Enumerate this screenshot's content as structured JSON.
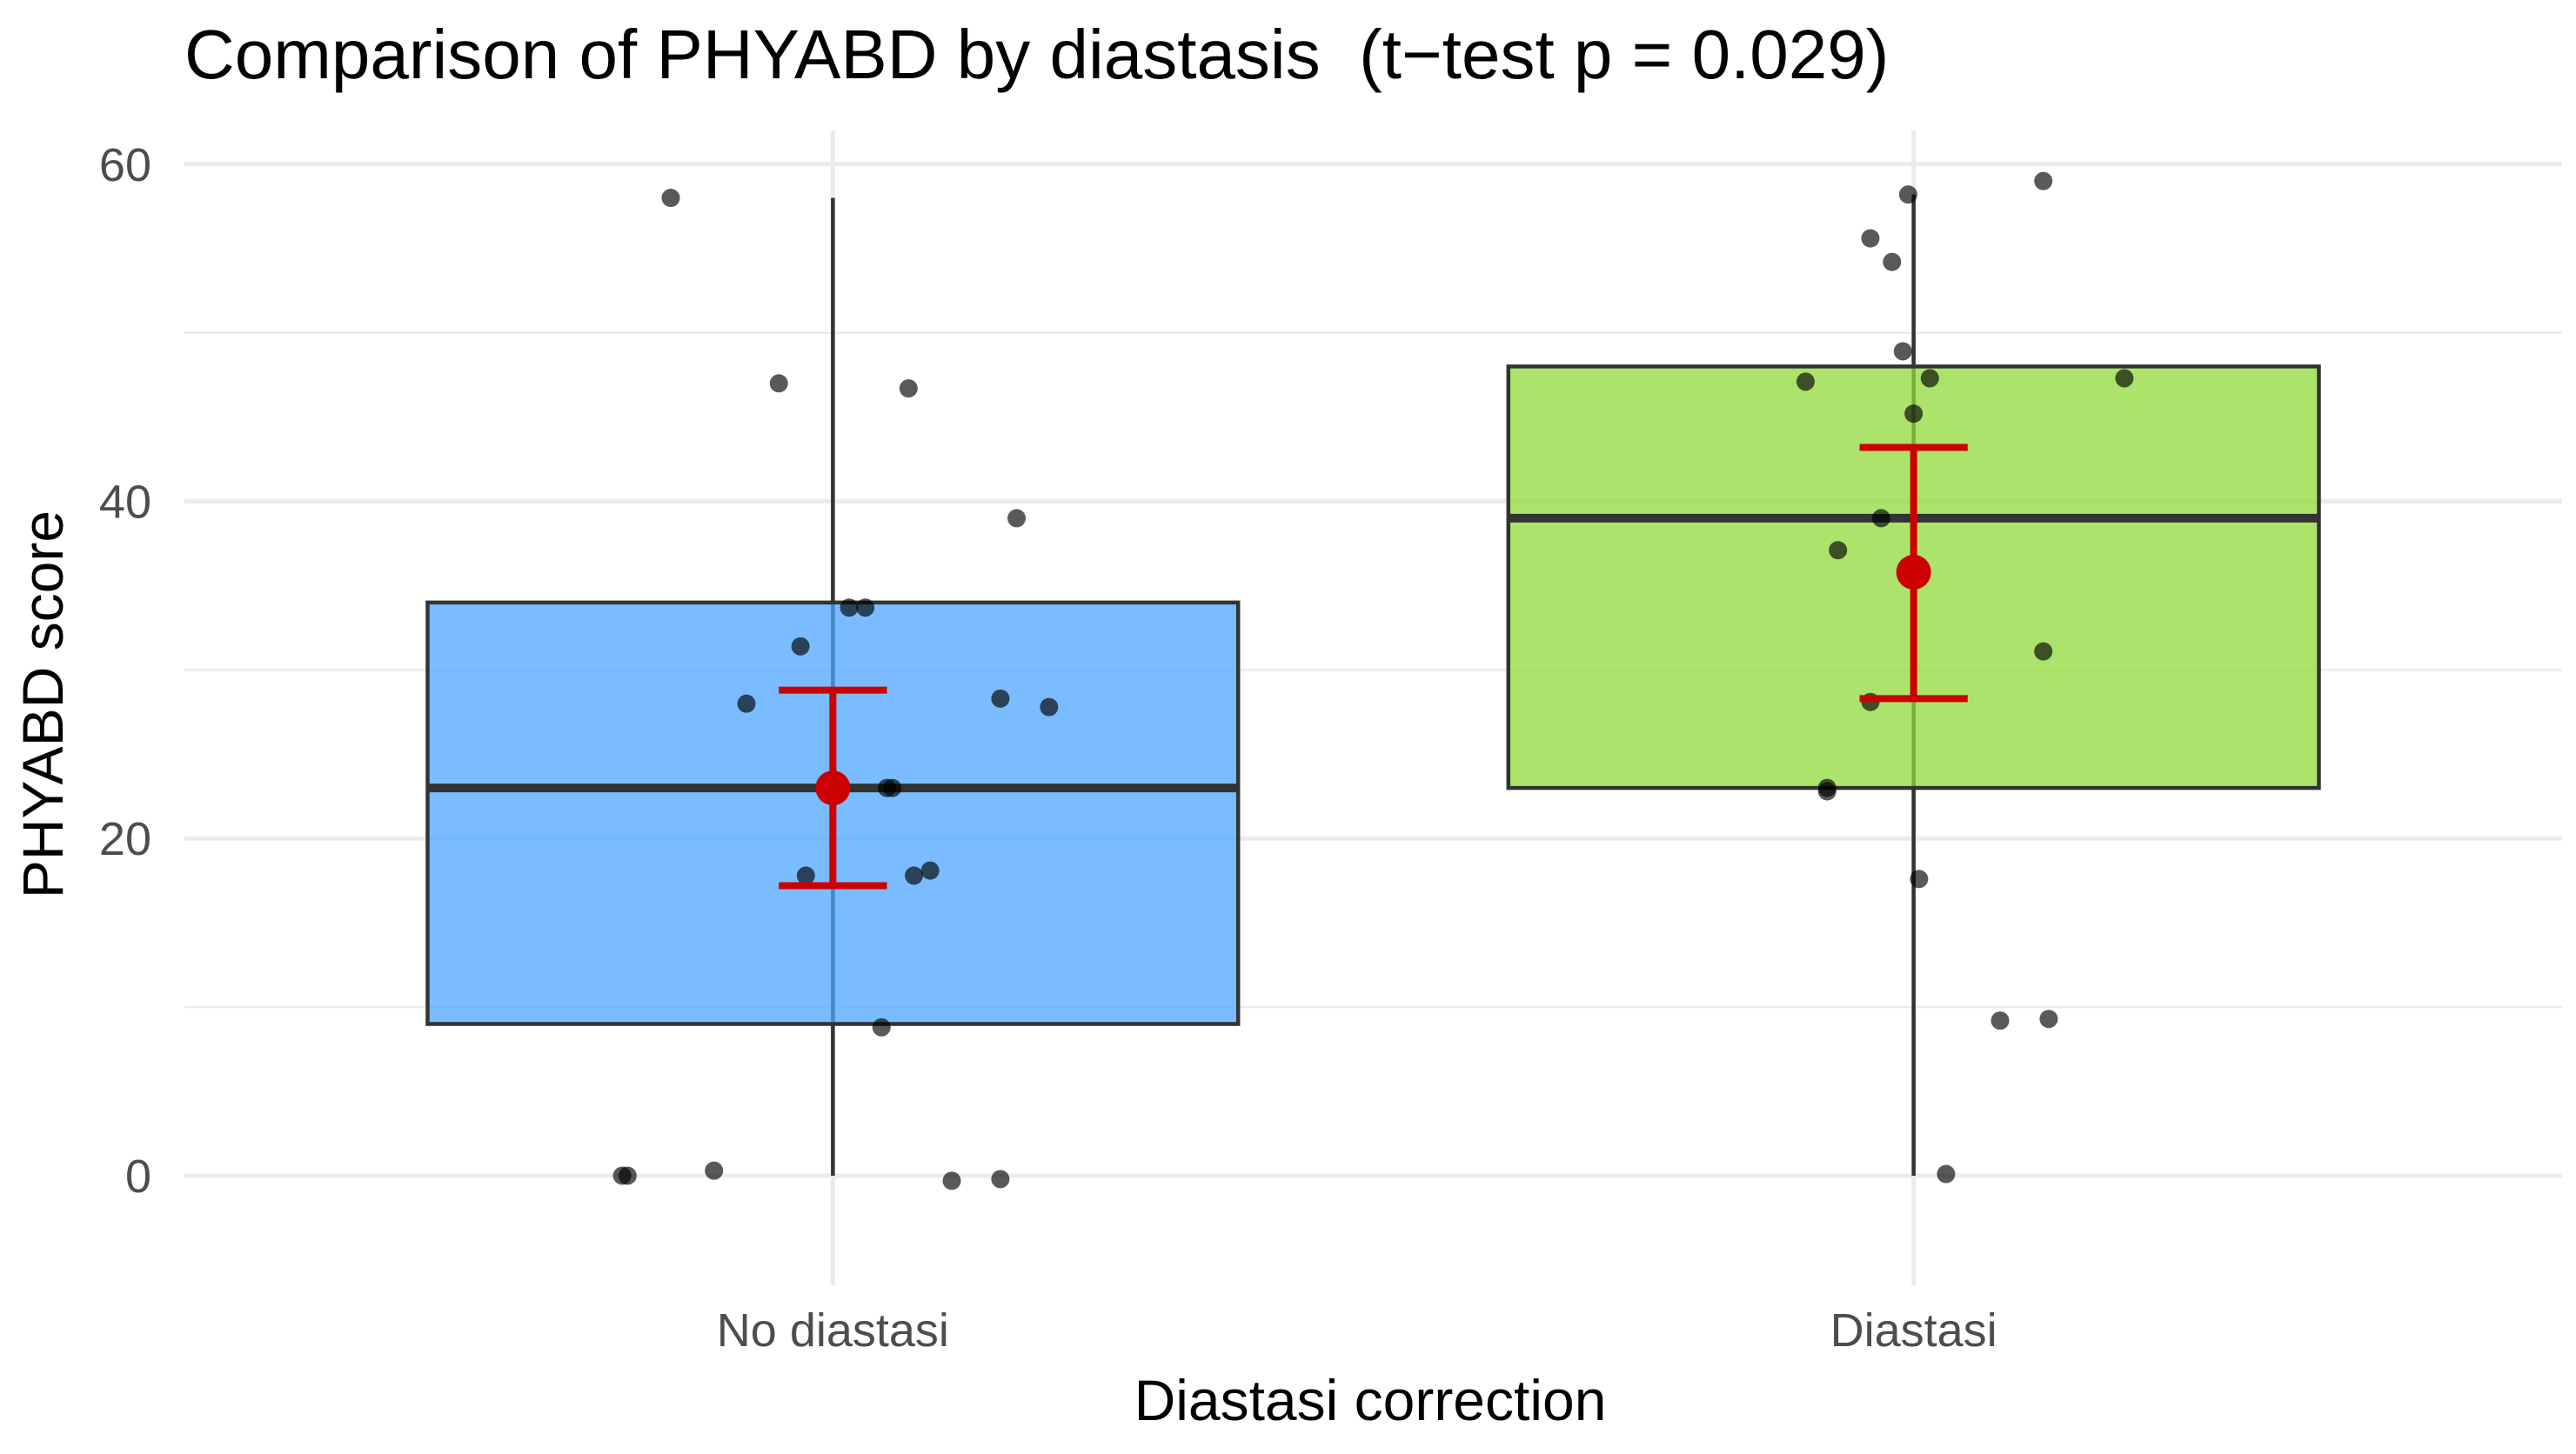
{
  "chart_data": {
    "type": "box",
    "title": "Comparison of PHYABD by diastasis  (t−test p = 0.029)",
    "xlabel": "Diastasi correction",
    "ylabel": "PHYABD score",
    "ylim": [
      -6.5,
      62
    ],
    "yticks": [
      0,
      20,
      40,
      60
    ],
    "grid": true,
    "legend": "none",
    "groups": [
      {
        "name": "No diastasi",
        "color": "#4da6ff",
        "box": {
          "whisker_low": 0,
          "q1": 9,
          "median": 23,
          "q3": 34,
          "whisker_high": 58
        },
        "mean": 23.0,
        "ci": [
          17.2,
          28.8
        ],
        "points": [
          {
            "x": 0.85,
            "y": 58
          },
          {
            "x": 0.95,
            "y": 47
          },
          {
            "x": 1.07,
            "y": 46.7
          },
          {
            "x": 1.17,
            "y": 39
          },
          {
            "x": 1.015,
            "y": 33.7
          },
          {
            "x": 1.03,
            "y": 33.7
          },
          {
            "x": 0.97,
            "y": 31.4
          },
          {
            "x": 0.92,
            "y": 28
          },
          {
            "x": 1.155,
            "y": 28.3
          },
          {
            "x": 1.2,
            "y": 27.8
          },
          {
            "x": 1.05,
            "y": 23
          },
          {
            "x": 1.055,
            "y": 23
          },
          {
            "x": 0.975,
            "y": 17.8
          },
          {
            "x": 1.075,
            "y": 17.8
          },
          {
            "x": 1.09,
            "y": 18.1
          },
          {
            "x": 1.045,
            "y": 8.8
          },
          {
            "x": 0.805,
            "y": 0
          },
          {
            "x": 0.81,
            "y": 0
          },
          {
            "x": 0.89,
            "y": 0.3
          },
          {
            "x": 1.11,
            "y": -0.3
          },
          {
            "x": 1.155,
            "y": -0.2
          }
        ]
      },
      {
        "name": "Diastasi",
        "color": "#8fd93a",
        "box": {
          "whisker_low": 0,
          "q1": 23,
          "median": 39,
          "q3": 48,
          "whisker_high": 58.2
        },
        "mean": 35.8,
        "ci": [
          28.3,
          43.2
        ],
        "points": [
          {
            "x": 2.12,
            "y": 59
          },
          {
            "x": 1.995,
            "y": 58.2
          },
          {
            "x": 1.96,
            "y": 55.6
          },
          {
            "x": 1.98,
            "y": 54.2
          },
          {
            "x": 1.99,
            "y": 48.9
          },
          {
            "x": 1.9,
            "y": 47.1
          },
          {
            "x": 2.015,
            "y": 47.3
          },
          {
            "x": 2.195,
            "y": 47.3
          },
          {
            "x": 2.0,
            "y": 45.2
          },
          {
            "x": 1.97,
            "y": 39
          },
          {
            "x": 1.93,
            "y": 37.1
          },
          {
            "x": 2.12,
            "y": 31.1
          },
          {
            "x": 1.96,
            "y": 28.1
          },
          {
            "x": 1.92,
            "y": 23
          },
          {
            "x": 1.92,
            "y": 22.8
          },
          {
            "x": 2.005,
            "y": 17.6
          },
          {
            "x": 2.08,
            "y": 9.2
          },
          {
            "x": 2.125,
            "y": 9.3
          },
          {
            "x": 2.03,
            "y": 0.1
          }
        ]
      }
    ]
  }
}
